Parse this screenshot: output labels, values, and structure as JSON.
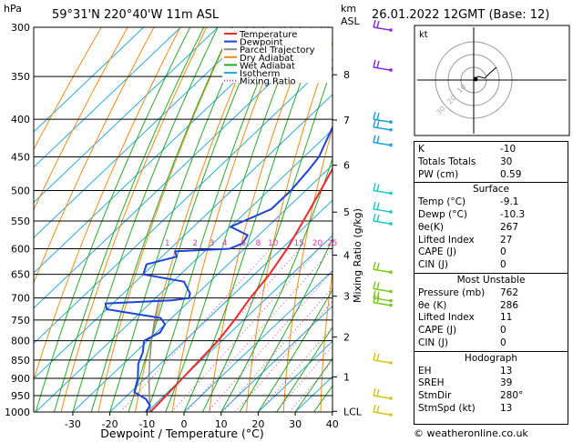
{
  "header": {
    "hpa_label": "hPa",
    "location": "59°31'N  220°40'W  11m  ASL",
    "km_label": "km",
    "asl_label": "ASL",
    "datetime": "26.01.2022  12GMT  (Base: 12)"
  },
  "chart_data": {
    "type": "line",
    "title": "Skew-T log-P diagram",
    "xlabel": "Dewpoint / Temperature (°C)",
    "ylabel": "hPa",
    "y2label": "Mixing Ratio (g/kg)",
    "xlim": [
      -35,
      40
    ],
    "ylim": [
      1000,
      300
    ],
    "pressure_ticks": [
      300,
      350,
      400,
      450,
      500,
      550,
      600,
      650,
      700,
      750,
      800,
      850,
      900,
      950,
      1000
    ],
    "temp_ticks": [
      -30,
      -20,
      -10,
      0,
      10,
      20,
      30,
      40
    ],
    "km_ticks": [
      {
        "label": "8",
        "p": 348
      },
      {
        "label": "7",
        "p": 401
      },
      {
        "label": "6",
        "p": 462
      },
      {
        "label": "5",
        "p": 535
      },
      {
        "label": "4",
        "p": 612
      },
      {
        "label": "3",
        "p": 696
      },
      {
        "label": "2",
        "p": 791
      },
      {
        "label": "1",
        "p": 896
      },
      {
        "label": "LCL",
        "p": 998
      }
    ],
    "mixing_ratio_labels": [
      {
        "label": "1",
        "x": -4.5
      },
      {
        "label": "2",
        "x": 3
      },
      {
        "label": "3",
        "x": 7.5
      },
      {
        "label": "4",
        "x": 11
      },
      {
        "label": "6",
        "x": 16
      },
      {
        "label": "8",
        "x": 20
      },
      {
        "label": "10",
        "x": 24
      },
      {
        "label": "15",
        "x": 31
      },
      {
        "label": "20",
        "x": 36
      },
      {
        "label": "25",
        "x": 40
      }
    ],
    "legend": [
      {
        "name": "Temperature",
        "color": "#e82b2b"
      },
      {
        "name": "Dewpoint",
        "color": "#1e43d6"
      },
      {
        "name": "Parcel Trajectory",
        "color": "#888888"
      },
      {
        "name": "Dry Adiabat",
        "color": "#f08c1a"
      },
      {
        "name": "Wet Adiabat",
        "color": "#2aa82a"
      },
      {
        "name": "Isotherm",
        "color": "#2aaadc"
      },
      {
        "name": "Mixing Ratio",
        "color": "#e03ca8"
      }
    ],
    "temperature": [
      {
        "p": 300,
        "t": -49.5
      },
      {
        "p": 350,
        "t": -43
      },
      {
        "p": 400,
        "t": -36.5
      },
      {
        "p": 450,
        "t": -30.5
      },
      {
        "p": 500,
        "t": -26
      },
      {
        "p": 550,
        "t": -22
      },
      {
        "p": 600,
        "t": -18.5
      },
      {
        "p": 650,
        "t": -16
      },
      {
        "p": 700,
        "t": -14.5
      },
      {
        "p": 750,
        "t": -12.5
      },
      {
        "p": 800,
        "t": -11
      },
      {
        "p": 850,
        "t": -10.5
      },
      {
        "p": 900,
        "t": -10
      },
      {
        "p": 950,
        "t": -9.5
      },
      {
        "p": 1000,
        "t": -9.1
      }
    ],
    "dewpoint": [
      {
        "p": 300,
        "t": -55
      },
      {
        "p": 330,
        "t": -50
      },
      {
        "p": 345,
        "t": -51
      },
      {
        "p": 360,
        "t": -48
      },
      {
        "p": 400,
        "t": -42
      },
      {
        "p": 450,
        "t": -36
      },
      {
        "p": 470,
        "t": -35
      },
      {
        "p": 500,
        "t": -34
      },
      {
        "p": 530,
        "t": -34
      },
      {
        "p": 560,
        "t": -40
      },
      {
        "p": 575,
        "t": -33
      },
      {
        "p": 590,
        "t": -32
      },
      {
        "p": 600,
        "t": -34
      },
      {
        "p": 605,
        "t": -48
      },
      {
        "p": 615,
        "t": -46
      },
      {
        "p": 630,
        "t": -52
      },
      {
        "p": 650,
        "t": -50
      },
      {
        "p": 665,
        "t": -37
      },
      {
        "p": 690,
        "t": -32
      },
      {
        "p": 700,
        "t": -31
      },
      {
        "p": 705,
        "t": -35
      },
      {
        "p": 712,
        "t": -52
      },
      {
        "p": 725,
        "t": -50
      },
      {
        "p": 745,
        "t": -33
      },
      {
        "p": 760,
        "t": -30
      },
      {
        "p": 780,
        "t": -29
      },
      {
        "p": 800,
        "t": -31
      },
      {
        "p": 830,
        "t": -28
      },
      {
        "p": 860,
        "t": -26
      },
      {
        "p": 900,
        "t": -22
      },
      {
        "p": 940,
        "t": -19
      },
      {
        "p": 960,
        "t": -14
      },
      {
        "p": 980,
        "t": -11
      },
      {
        "p": 1000,
        "t": -10.3
      }
    ],
    "parcel": [
      {
        "p": 1000,
        "t": -9.1
      },
      {
        "p": 950,
        "t": -14
      },
      {
        "p": 900,
        "t": -19
      },
      {
        "p": 850,
        "t": -24
      },
      {
        "p": 800,
        "t": -29
      },
      {
        "p": 750,
        "t": -34
      },
      {
        "p": 700,
        "t": -39
      }
    ],
    "wind_barb_pressures": [
      300,
      340,
      400,
      410,
      430,
      500,
      530,
      550,
      640,
      680,
      700,
      710,
      850,
      950,
      1000
    ]
  },
  "hodograph": {
    "unit_label": "kt",
    "ring_labels": [
      "10",
      "20",
      "30"
    ]
  },
  "stats": {
    "rows_top": [
      {
        "label": "K",
        "value": "-10"
      },
      {
        "label": "Totals Totals",
        "value": "30"
      },
      {
        "label": "PW (cm)",
        "value": "0.59"
      }
    ],
    "surface_header": "Surface",
    "surface": [
      {
        "label": "Temp (°C)",
        "value": "-9.1"
      },
      {
        "label": "Dewp (°C)",
        "value": "-10.3"
      },
      {
        "label": "θe(K)",
        "value": "267"
      },
      {
        "label": "Lifted Index",
        "value": "27"
      },
      {
        "label": "CAPE (J)",
        "value": "0"
      },
      {
        "label": "CIN (J)",
        "value": "0"
      }
    ],
    "unstable_header": "Most Unstable",
    "unstable": [
      {
        "label": "Pressure (mb)",
        "value": "762"
      },
      {
        "label": "θe (K)",
        "value": "286"
      },
      {
        "label": "Lifted Index",
        "value": "11"
      },
      {
        "label": "CAPE (J)",
        "value": "0"
      },
      {
        "label": "CIN (J)",
        "value": "0"
      }
    ],
    "hodograph_header": "Hodograph",
    "hodo": [
      {
        "label": "EH",
        "value": "13"
      },
      {
        "label": "SREH",
        "value": "39"
      },
      {
        "label": "StmDir",
        "value": "280°"
      },
      {
        "label": "StmSpd (kt)",
        "value": "13"
      }
    ]
  },
  "footer": "© weatheronline.co.uk"
}
